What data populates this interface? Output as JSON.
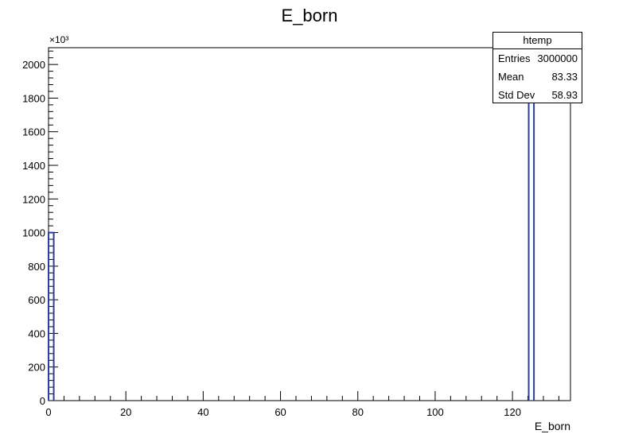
{
  "chart_data": {
    "type": "histogram",
    "title": "E_born",
    "xlabel": "E_born",
    "ylabel": "",
    "y_multiplier_label": "×10³",
    "xlim": [
      0,
      135
    ],
    "ylim": [
      0,
      2100000
    ],
    "x_ticks": [
      0,
      20,
      40,
      60,
      80,
      100,
      120
    ],
    "y_ticks": [
      0,
      200,
      400,
      600,
      800,
      1000,
      1200,
      1400,
      1600,
      1800,
      2000
    ],
    "bins": [
      {
        "x0": 0.0,
        "x1": 1.35,
        "value": 1000000
      },
      {
        "x0": 124.2,
        "x1": 125.55,
        "value": 2000000
      }
    ],
    "line_color": "#2b3f9e",
    "legend": "top-right"
  },
  "stats": {
    "title": "htemp",
    "rows": [
      {
        "label": "Entries",
        "value": "3000000"
      },
      {
        "label": "Mean",
        "value": "83.33"
      },
      {
        "label": "Std Dev",
        "value": "58.93"
      }
    ]
  }
}
